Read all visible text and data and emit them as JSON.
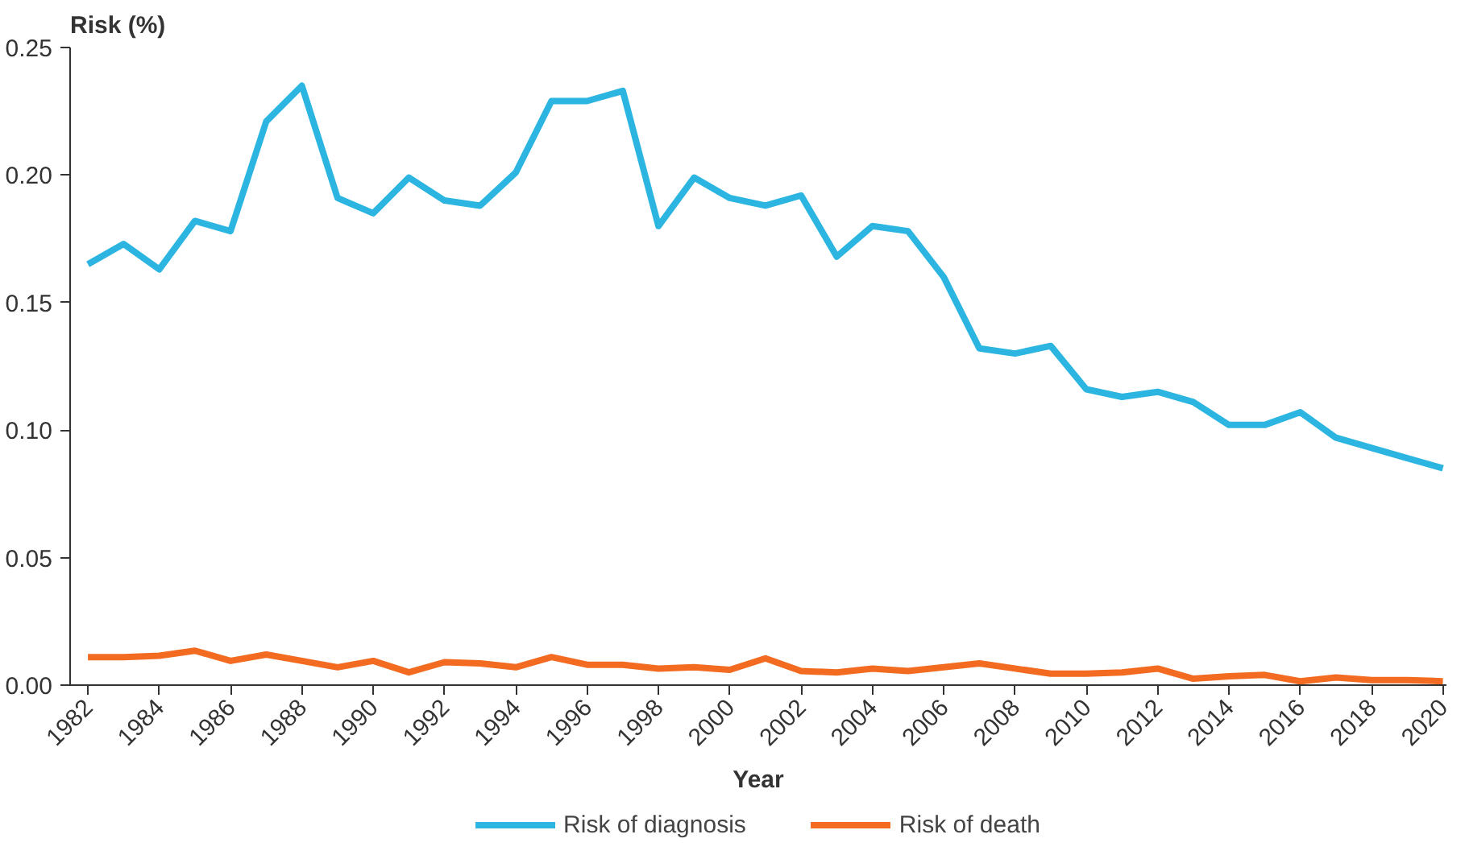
{
  "chart_data": {
    "type": "line",
    "xlabel": "Year",
    "ylabel": "Risk (%)",
    "x": [
      1982,
      1983,
      1984,
      1985,
      1986,
      1987,
      1988,
      1989,
      1990,
      1991,
      1992,
      1993,
      1994,
      1995,
      1996,
      1997,
      1998,
      1999,
      2000,
      2001,
      2002,
      2003,
      2004,
      2005,
      2006,
      2007,
      2008,
      2009,
      2010,
      2011,
      2012,
      2013,
      2014,
      2015,
      2016,
      2017,
      2018,
      2019,
      2020
    ],
    "series": [
      {
        "name": "Risk of diagnosis",
        "color": "#2bb5e0",
        "values": [
          0.165,
          0.173,
          0.163,
          0.182,
          0.178,
          0.221,
          0.235,
          0.191,
          0.185,
          0.199,
          0.19,
          0.188,
          0.201,
          0.229,
          0.229,
          0.233,
          0.18,
          0.199,
          0.191,
          0.188,
          0.192,
          0.168,
          0.18,
          0.178,
          0.16,
          0.132,
          0.13,
          0.133,
          0.116,
          0.113,
          0.115,
          0.111,
          0.102,
          0.102,
          0.107,
          0.097,
          0.093,
          0.089,
          0.085
        ]
      },
      {
        "name": "Risk of death",
        "color": "#f26b21",
        "values": [
          0.011,
          0.011,
          0.0115,
          0.0135,
          0.0095,
          0.012,
          0.0095,
          0.007,
          0.0095,
          0.005,
          0.009,
          0.0085,
          0.007,
          0.011,
          0.008,
          0.008,
          0.0065,
          0.007,
          0.006,
          0.0105,
          0.0055,
          0.005,
          0.0065,
          0.0055,
          0.007,
          0.0085,
          0.0065,
          0.0045,
          0.0045,
          0.005,
          0.0065,
          0.0025,
          0.0035,
          0.004,
          0.0015,
          0.003,
          0.002,
          0.002,
          0.0015
        ]
      }
    ],
    "xlim": [
      1981.5,
      2020.1
    ],
    "xticks": [
      1982,
      1984,
      1986,
      1988,
      1990,
      1992,
      1994,
      1996,
      1998,
      2000,
      2002,
      2004,
      2006,
      2008,
      2010,
      2012,
      2014,
      2016,
      2018,
      2020
    ],
    "ylim": [
      0,
      0.25
    ],
    "yticks": [
      {
        "value": 0,
        "label": "0.00"
      },
      {
        "value": 0.05,
        "label": "0.05"
      },
      {
        "value": 0.1,
        "label": "0.10"
      },
      {
        "value": 0.15,
        "label": "0.15"
      },
      {
        "value": 0.2,
        "label": "0.20"
      },
      {
        "value": 0.25,
        "label": "0.25"
      }
    ],
    "grid": false,
    "legend": "bottom",
    "marker": "none",
    "line_style": "solid"
  }
}
